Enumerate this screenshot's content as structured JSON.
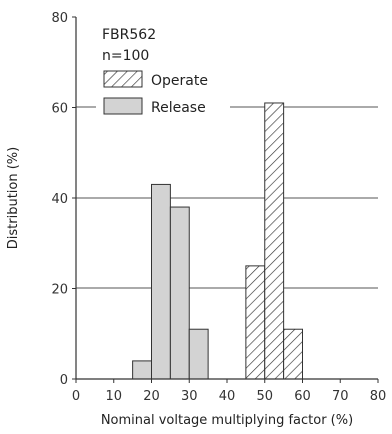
{
  "chart_data": {
    "type": "bar",
    "title": "",
    "xlabel": "Nominal voltage multiplying factor (%)",
    "ylabel": "Distribution (%)",
    "xlim": [
      0,
      80
    ],
    "ylim": [
      0,
      80
    ],
    "x_ticks": [
      0,
      10,
      20,
      30,
      40,
      50,
      60,
      70,
      80
    ],
    "y_ticks": [
      0,
      20,
      40,
      60,
      80
    ],
    "grid": "horizontal",
    "bin_width": 5,
    "annotation": [
      "FBR562",
      "n=100"
    ],
    "legend_position": "top-left",
    "series": [
      {
        "name": "Operate",
        "pattern": "hatched",
        "bins": [
          45,
          50,
          55
        ],
        "values": [
          25,
          61,
          11
        ]
      },
      {
        "name": "Release",
        "pattern": "solid",
        "color": "#d3d3d3",
        "bins": [
          15,
          20,
          25,
          30
        ],
        "values": [
          4,
          43,
          38,
          11
        ]
      }
    ]
  }
}
